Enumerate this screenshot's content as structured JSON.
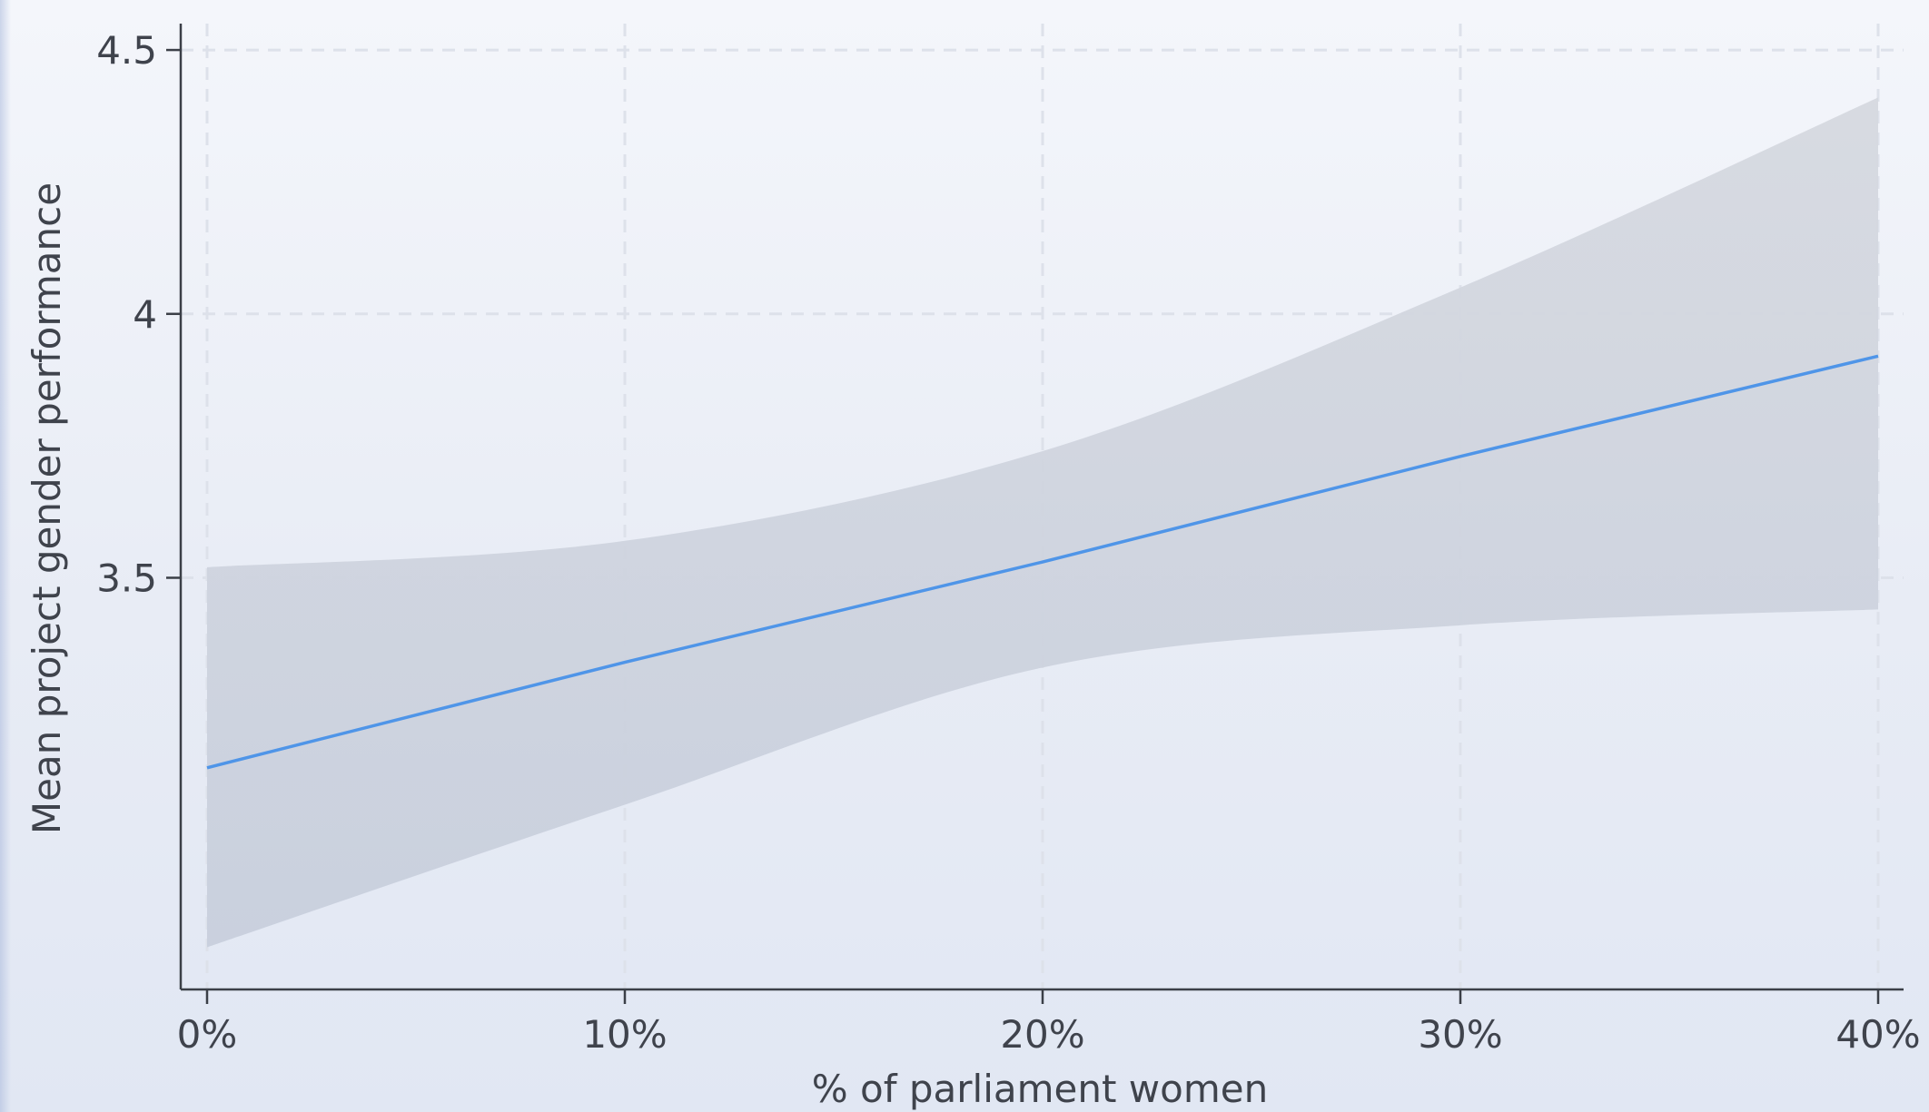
{
  "chart_data": {
    "type": "line",
    "title": "",
    "xlabel": "% of parliament women",
    "ylabel": "Mean project gender performance",
    "x_range": [
      0,
      40
    ],
    "y_range": [
      2.72,
      4.55
    ],
    "x_ticks": [
      {
        "value": 0,
        "label": "0%"
      },
      {
        "value": 10,
        "label": "10%"
      },
      {
        "value": 20,
        "label": "20%"
      },
      {
        "value": 30,
        "label": "30%"
      },
      {
        "value": 40,
        "label": "40%"
      }
    ],
    "y_ticks": [
      {
        "value": 3.5,
        "label": "3.5"
      },
      {
        "value": 4,
        "label": "4"
      },
      {
        "value": 4.5,
        "label": "4.5"
      }
    ],
    "grid": true,
    "legend": "none",
    "series": [
      {
        "x": [
          0,
          10,
          20,
          30,
          40
        ],
        "y": [
          3.14,
          3.34,
          3.53,
          3.73,
          3.92
        ],
        "ci_lower": [
          2.8,
          3.07,
          3.33,
          3.41,
          3.44
        ],
        "ci_upper": [
          3.52,
          3.57,
          3.74,
          4.05,
          4.41
        ],
        "color": "#4f95e8",
        "band_color": "#c9ced8"
      }
    ]
  }
}
